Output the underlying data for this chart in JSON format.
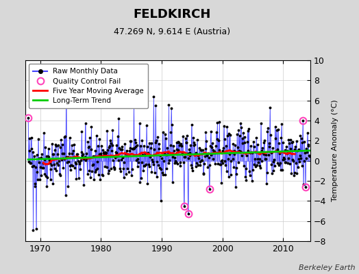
{
  "title": "FELDKIRCH",
  "subtitle": "47.269 N, 9.614 E (Austria)",
  "ylabel": "Temperature Anomaly (°C)",
  "credit": "Berkeley Earth",
  "year_start": 1968,
  "year_end": 2014,
  "ylim": [
    -8,
    10
  ],
  "yticks": [
    -8,
    -6,
    -4,
    -2,
    0,
    2,
    4,
    6,
    8,
    10
  ],
  "xticks": [
    1970,
    1980,
    1990,
    2000,
    2010
  ],
  "background_color": "#d8d8d8",
  "plot_bg_color": "#ffffff",
  "raw_line_color": "#4444ff",
  "raw_dot_color": "#000000",
  "moving_avg_color": "#ff0000",
  "trend_color": "#00cc00",
  "qc_fail_color": "#ff44bb",
  "legend_bg": "#ffffff",
  "seed": 42,
  "noise_amp": 1.4,
  "trend_slope": 0.022,
  "trend_intercept": 0.1
}
